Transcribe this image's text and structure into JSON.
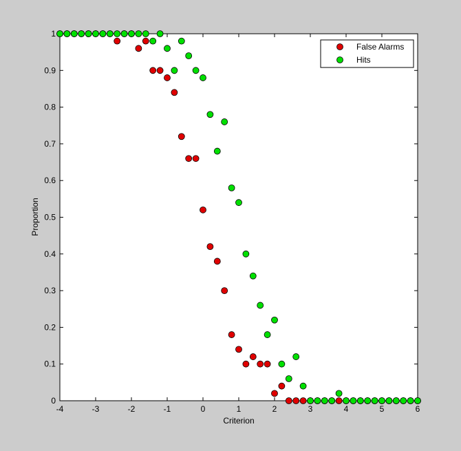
{
  "chart_data": {
    "type": "scatter",
    "xlabel": "Criterion",
    "ylabel": "Proportion",
    "xlim": [
      -4,
      6
    ],
    "ylim": [
      0,
      1
    ],
    "xticks": [
      -4,
      -3,
      -2,
      -1,
      0,
      1,
      2,
      3,
      4,
      5,
      6
    ],
    "yticks": [
      0,
      0.1,
      0.2,
      0.3,
      0.4,
      0.5,
      0.6,
      0.7,
      0.8,
      0.9,
      1
    ],
    "xtick_labels": [
      "-4",
      "-3",
      "-2",
      "-1",
      "0",
      "1",
      "2",
      "3",
      "4",
      "5",
      "6"
    ],
    "ytick_labels": [
      "0",
      "0.1",
      "0.2",
      "0.3",
      "0.4",
      "0.5",
      "0.6",
      "0.7",
      "0.8",
      "0.9",
      "1"
    ],
    "grid": false,
    "legend_position": "top-right",
    "series": [
      {
        "name": "False Alarms",
        "color": "#e00000",
        "points": [
          [
            -4.0,
            1
          ],
          [
            -3.8,
            1
          ],
          [
            -3.6,
            1
          ],
          [
            -3.4,
            1
          ],
          [
            -3.2,
            1
          ],
          [
            -3.0,
            1
          ],
          [
            -2.8,
            1
          ],
          [
            -2.6,
            1
          ],
          [
            -2.4,
            0.98
          ],
          [
            -2.2,
            1
          ],
          [
            -2.0,
            1
          ],
          [
            -1.8,
            0.96
          ],
          [
            -1.6,
            0.98
          ],
          [
            -1.4,
            0.9
          ],
          [
            -1.2,
            0.9
          ],
          [
            -1.0,
            0.88
          ],
          [
            -0.8,
            0.84
          ],
          [
            -0.6,
            0.72
          ],
          [
            -0.4,
            0.66
          ],
          [
            -0.2,
            0.66
          ],
          [
            0.0,
            0.52
          ],
          [
            0.2,
            0.42
          ],
          [
            0.4,
            0.38
          ],
          [
            0.6,
            0.3
          ],
          [
            0.8,
            0.18
          ],
          [
            1.0,
            0.14
          ],
          [
            1.2,
            0.1
          ],
          [
            1.4,
            0.12
          ],
          [
            1.6,
            0.1
          ],
          [
            1.8,
            0.1
          ],
          [
            2.0,
            0.02
          ],
          [
            2.2,
            0.04
          ],
          [
            2.4,
            0
          ],
          [
            2.6,
            0
          ],
          [
            2.8,
            0
          ],
          [
            3.0,
            0
          ],
          [
            3.2,
            0
          ],
          [
            3.4,
            0
          ],
          [
            3.6,
            0
          ],
          [
            3.8,
            0
          ],
          [
            4.0,
            0
          ],
          [
            4.2,
            0
          ],
          [
            4.4,
            0
          ],
          [
            4.6,
            0
          ],
          [
            4.8,
            0
          ],
          [
            5.0,
            0
          ],
          [
            5.2,
            0
          ],
          [
            5.4,
            0
          ],
          [
            5.6,
            0
          ],
          [
            5.8,
            0
          ],
          [
            6.0,
            0
          ]
        ]
      },
      {
        "name": "Hits",
        "color": "#00e000",
        "points": [
          [
            -4.0,
            1
          ],
          [
            -3.8,
            1
          ],
          [
            -3.6,
            1
          ],
          [
            -3.4,
            1
          ],
          [
            -3.2,
            1
          ],
          [
            -3.0,
            1
          ],
          [
            -2.8,
            1
          ],
          [
            -2.6,
            1
          ],
          [
            -2.4,
            1
          ],
          [
            -2.2,
            1
          ],
          [
            -2.0,
            1
          ],
          [
            -1.8,
            1
          ],
          [
            -1.6,
            1
          ],
          [
            -1.4,
            0.98
          ],
          [
            -1.2,
            1
          ],
          [
            -1.0,
            0.96
          ],
          [
            -0.8,
            0.9
          ],
          [
            -0.6,
            0.98
          ],
          [
            -0.4,
            0.94
          ],
          [
            -0.2,
            0.9
          ],
          [
            0.0,
            0.88
          ],
          [
            0.2,
            0.78
          ],
          [
            0.4,
            0.68
          ],
          [
            0.6,
            0.76
          ],
          [
            0.8,
            0.58
          ],
          [
            1.0,
            0.54
          ],
          [
            1.2,
            0.4
          ],
          [
            1.4,
            0.34
          ],
          [
            1.6,
            0.26
          ],
          [
            1.8,
            0.18
          ],
          [
            2.0,
            0.22
          ],
          [
            2.2,
            0.1
          ],
          [
            2.4,
            0.06
          ],
          [
            2.6,
            0.12
          ],
          [
            2.8,
            0.04
          ],
          [
            3.0,
            0
          ],
          [
            3.2,
            0
          ],
          [
            3.4,
            0
          ],
          [
            3.6,
            0
          ],
          [
            3.8,
            0.02
          ],
          [
            4.0,
            0
          ],
          [
            4.2,
            0
          ],
          [
            4.4,
            0
          ],
          [
            4.6,
            0
          ],
          [
            4.8,
            0
          ],
          [
            5.0,
            0
          ],
          [
            5.2,
            0
          ],
          [
            5.4,
            0
          ],
          [
            5.6,
            0
          ],
          [
            5.8,
            0
          ],
          [
            6.0,
            0
          ]
        ]
      }
    ]
  }
}
